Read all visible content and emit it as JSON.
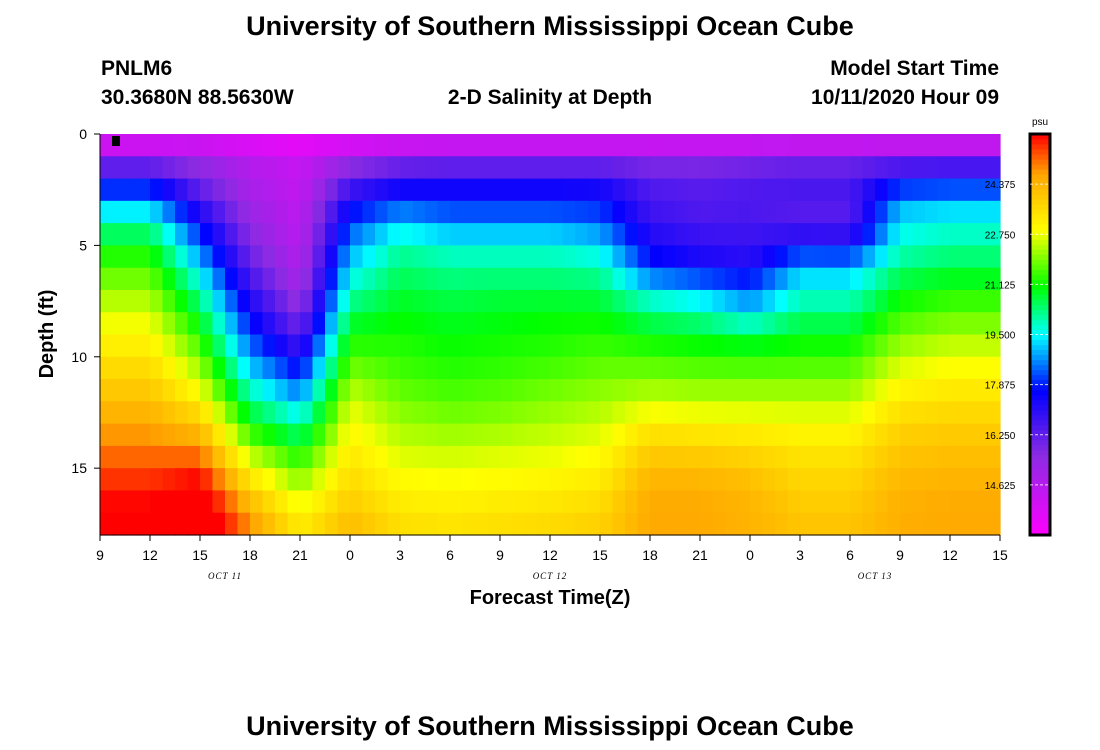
{
  "page": {
    "title_top": "University of Southern Mississippi Ocean Cube",
    "title_bottom": "University of Southern Mississippi Ocean Cube",
    "station_id": "PNLM6",
    "station_coords": "30.3680N 88.5630W",
    "plot_title": "2-D Salinity at Depth",
    "model_start_label": "Model Start Time",
    "model_start_value": "10/11/2020 Hour 09"
  },
  "chart_data": {
    "type": "heatmap",
    "title": "2-D Salinity at Depth",
    "xlabel": "Forecast Time(Z)",
    "ylabel": "Depth (ft)",
    "x_range_hours": [
      0,
      54
    ],
    "y_range_ft": [
      0,
      18
    ],
    "x_ticks": [
      {
        "h": 0,
        "label": "9"
      },
      {
        "h": 3,
        "label": "12"
      },
      {
        "h": 6,
        "label": "15"
      },
      {
        "h": 9,
        "label": "18"
      },
      {
        "h": 12,
        "label": "21"
      },
      {
        "h": 15,
        "label": "0"
      },
      {
        "h": 18,
        "label": "3"
      },
      {
        "h": 21,
        "label": "6"
      },
      {
        "h": 24,
        "label": "9"
      },
      {
        "h": 27,
        "label": "12"
      },
      {
        "h": 30,
        "label": "15"
      },
      {
        "h": 33,
        "label": "18"
      },
      {
        "h": 36,
        "label": "21"
      },
      {
        "h": 39,
        "label": "0"
      },
      {
        "h": 42,
        "label": "3"
      },
      {
        "h": 45,
        "label": "6"
      },
      {
        "h": 48,
        "label": "9"
      },
      {
        "h": 51,
        "label": "12"
      },
      {
        "h": 54,
        "label": "15"
      }
    ],
    "date_labels": [
      {
        "h": 7.5,
        "label": "OCT 11"
      },
      {
        "h": 27,
        "label": "OCT 12"
      },
      {
        "h": 46.5,
        "label": "OCT 13"
      }
    ],
    "y_ticks": [
      {
        "v": 0,
        "label": "0"
      },
      {
        "v": 5,
        "label": "5"
      },
      {
        "v": 10,
        "label": "10"
      },
      {
        "v": 15,
        "label": "15"
      }
    ],
    "colorbar": {
      "unit": "psu",
      "range": [
        13.0,
        26.0
      ],
      "ticks": [
        {
          "v": 24.375,
          "label": "24.375"
        },
        {
          "v": 22.75,
          "label": "22.750"
        },
        {
          "v": 21.125,
          "label": "21.125"
        },
        {
          "v": 19.5,
          "label": "19.500"
        },
        {
          "v": 17.875,
          "label": "17.875"
        },
        {
          "v": 16.25,
          "label": "16.250"
        },
        {
          "v": 14.625,
          "label": "14.625"
        }
      ]
    },
    "times_h": [
      0,
      3,
      6,
      9,
      12,
      15,
      18,
      21,
      24,
      27,
      30,
      33,
      36,
      39,
      42,
      45,
      48,
      51,
      54
    ],
    "depths_ft": [
      0,
      1,
      2,
      3,
      4,
      5,
      6,
      7,
      8,
      9,
      10,
      11,
      12,
      13,
      14,
      15,
      16,
      17,
      18
    ],
    "salinity_profiles_psu": [
      [
        13.0,
        15.3,
        17.2,
        18.8,
        20.0,
        21.0,
        21.6,
        22.1,
        22.6,
        23.0,
        23.4,
        23.8,
        24.2,
        24.6,
        25.0,
        25.4,
        25.8,
        26.1,
        26.3
      ],
      [
        13.0,
        15.3,
        17.2,
        18.8,
        20.0,
        21.0,
        21.6,
        22.1,
        22.6,
        23.0,
        23.4,
        23.8,
        24.2,
        24.6,
        25.0,
        25.4,
        25.8,
        26.1,
        26.3
      ],
      [
        13.2,
        15.2,
        15.8,
        16.7,
        17.6,
        18.4,
        19.2,
        20.0,
        20.7,
        21.3,
        21.9,
        22.5,
        23.2,
        24.0,
        24.8,
        25.6,
        26.3,
        26.7,
        26.9
      ],
      [
        13.1,
        14.6,
        14.8,
        15.1,
        15.4,
        15.8,
        16.3,
        16.9,
        17.5,
        18.1,
        18.8,
        19.5,
        20.3,
        21.1,
        22.0,
        23.0,
        23.8,
        24.6,
        25.0
      ],
      [
        13.0,
        14.2,
        14.3,
        14.4,
        14.5,
        14.6,
        14.8,
        15.1,
        15.6,
        16.3,
        17.2,
        18.1,
        19.0,
        20.0,
        20.9,
        21.7,
        22.4,
        23.0,
        23.4
      ],
      [
        13.0,
        15.0,
        16.2,
        17.3,
        18.1,
        18.7,
        19.3,
        19.9,
        20.5,
        21.1,
        21.6,
        22.1,
        22.6,
        22.9,
        23.2,
        23.5,
        23.7,
        24.1,
        24.3
      ],
      [
        13.1,
        15.4,
        16.9,
        18.0,
        19.2,
        20.0,
        20.4,
        20.7,
        21.0,
        21.2,
        21.4,
        21.6,
        21.9,
        22.2,
        22.5,
        22.8,
        23.1,
        23.4,
        23.6
      ],
      [
        13.1,
        15.5,
        17.0,
        17.9,
        18.6,
        19.7,
        20.1,
        20.5,
        20.8,
        21.0,
        21.2,
        21.4,
        21.7,
        22.0,
        22.4,
        22.7,
        23.0,
        23.3,
        23.5
      ],
      [
        13.1,
        15.5,
        17.0,
        17.9,
        18.6,
        19.7,
        20.1,
        20.6,
        20.9,
        21.1,
        21.3,
        21.5,
        21.8,
        22.1,
        22.5,
        22.8,
        23.1,
        23.4,
        23.6
      ],
      [
        13.1,
        15.5,
        17.0,
        17.9,
        18.6,
        19.7,
        20.1,
        20.6,
        21.0,
        21.2,
        21.4,
        21.7,
        22.0,
        22.3,
        22.6,
        22.9,
        23.2,
        23.5,
        23.7
      ],
      [
        13.2,
        15.5,
        17.0,
        17.8,
        18.4,
        19.3,
        20.0,
        20.5,
        21.0,
        21.3,
        21.6,
        21.9,
        22.2,
        22.5,
        22.8,
        23.1,
        23.4,
        23.7,
        23.9
      ],
      [
        13.2,
        15.4,
        16.4,
        16.6,
        16.9,
        17.4,
        18.0,
        19.4,
        20.3,
        21.0,
        21.5,
        22.0,
        22.5,
        23.2,
        23.8,
        24.2,
        24.5,
        24.6,
        24.6
      ],
      [
        13.2,
        15.4,
        16.3,
        16.4,
        16.6,
        17.0,
        17.5,
        19.0,
        20.0,
        20.8,
        21.4,
        21.9,
        22.4,
        23.1,
        23.7,
        24.2,
        24.5,
        24.6,
        24.6
      ],
      [
        13.2,
        15.5,
        16.5,
        16.5,
        16.6,
        16.9,
        17.2,
        18.4,
        19.1,
        20.6,
        21.3,
        21.9,
        22.4,
        23.0,
        23.6,
        24.0,
        24.3,
        24.4,
        24.4
      ],
      [
        13.2,
        15.6,
        16.7,
        16.4,
        16.4,
        17.5,
        19.0,
        19.6,
        20.3,
        20.9,
        21.4,
        21.9,
        22.4,
        22.9,
        23.3,
        23.6,
        23.8,
        24.0,
        24.1
      ],
      [
        13.2,
        15.6,
        16.7,
        16.4,
        16.4,
        17.4,
        19.0,
        19.6,
        20.3,
        20.9,
        21.4,
        21.9,
        22.4,
        22.9,
        23.3,
        23.6,
        23.8,
        24.0,
        24.1
      ],
      [
        13.2,
        15.7,
        17.4,
        18.8,
        19.4,
        19.8,
        20.3,
        20.9,
        21.4,
        21.9,
        22.4,
        22.9,
        23.3,
        23.7,
        24.0,
        24.2,
        24.4,
        24.5,
        24.5
      ],
      [
        13.2,
        15.7,
        17.5,
        19.0,
        19.6,
        20.1,
        20.6,
        21.2,
        21.7,
        22.2,
        22.7,
        23.1,
        23.5,
        23.8,
        24.1,
        24.3,
        24.5,
        24.6,
        24.6
      ],
      [
        13.2,
        15.7,
        17.5,
        19.0,
        19.6,
        20.1,
        20.6,
        21.2,
        21.7,
        22.2,
        22.7,
        23.1,
        23.5,
        23.8,
        24.1,
        24.3,
        24.5,
        24.6,
        24.6
      ]
    ]
  }
}
